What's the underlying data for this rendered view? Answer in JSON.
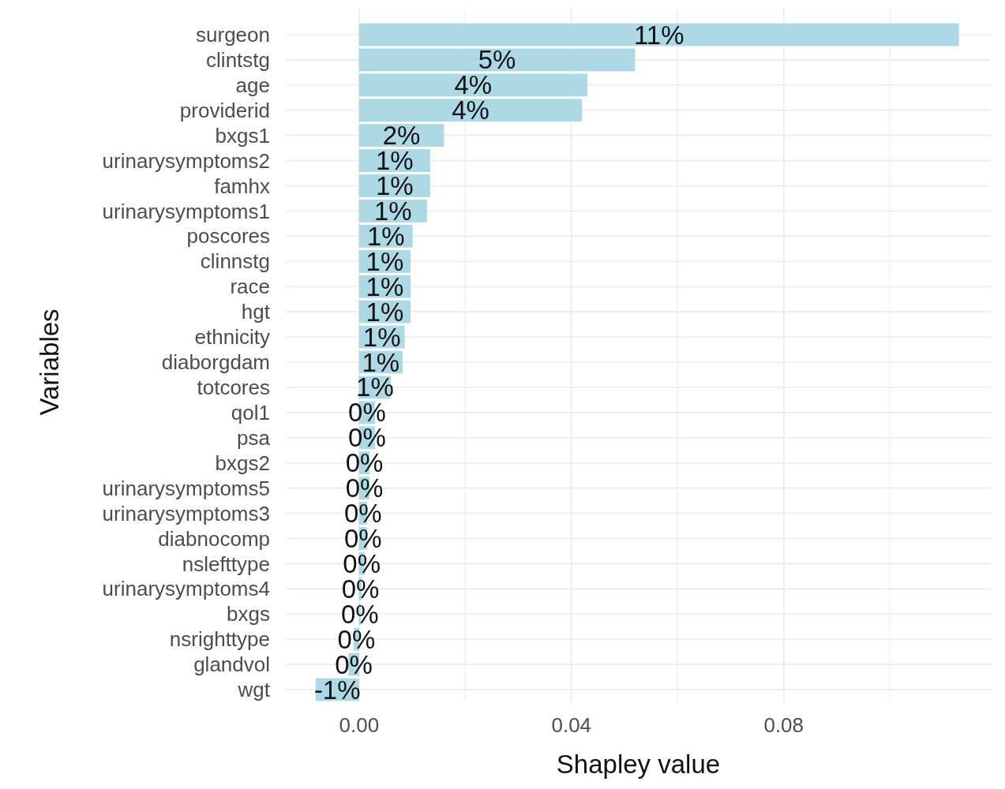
{
  "chart_data": {
    "type": "bar",
    "orientation": "horizontal",
    "xlabel": "Shapley value",
    "ylabel": "Variables",
    "categories": [
      "surgeon",
      "clintstg",
      "age",
      "providerid",
      "bxgs1",
      "urinarysymptoms2",
      "famhx",
      "urinarysymptoms1",
      "poscores",
      "clinnstg",
      "race",
      "hgt",
      "ethnicity",
      "diaborgdam",
      "totcores",
      "qol1",
      "psa",
      "bxgs2",
      "urinarysymptoms5",
      "urinarysymptoms3",
      "diabnocomp",
      "nslefttype",
      "urinarysymptoms4",
      "bxgs",
      "nsrighttype",
      "glandvol",
      "wgt"
    ],
    "values": [
      0.113,
      0.052,
      0.043,
      0.042,
      0.016,
      0.0134,
      0.0134,
      0.0128,
      0.0101,
      0.0097,
      0.0097,
      0.0097,
      0.0086,
      0.0082,
      0.006,
      0.003,
      0.003,
      0.002,
      0.002,
      0.0015,
      0.0015,
      0.001,
      0.0005,
      0.0003,
      -0.001,
      -0.002,
      -0.0082
    ],
    "value_labels": [
      "11%",
      "5%",
      "4%",
      "4%",
      "2%",
      "1%",
      "1%",
      "1%",
      "1%",
      "1%",
      "1%",
      "1%",
      "1%",
      "1%",
      "1%",
      "0%",
      "0%",
      "0%",
      "0%",
      "0%",
      "0%",
      "0%",
      "0%",
      "0%",
      "0%",
      "0%",
      "-1%"
    ],
    "color": "#add8e6",
    "xlim": [
      -0.0138,
      0.119
    ],
    "xticks": [
      {
        "value": 0,
        "label": "0.00"
      },
      {
        "value": 0.02,
        "label": null
      },
      {
        "value": 0.04,
        "label": "0.04"
      },
      {
        "value": 0.06,
        "label": null
      },
      {
        "value": 0.08,
        "label": "0.08"
      },
      {
        "value": 0.1,
        "label": null
      }
    ],
    "grid": true
  }
}
